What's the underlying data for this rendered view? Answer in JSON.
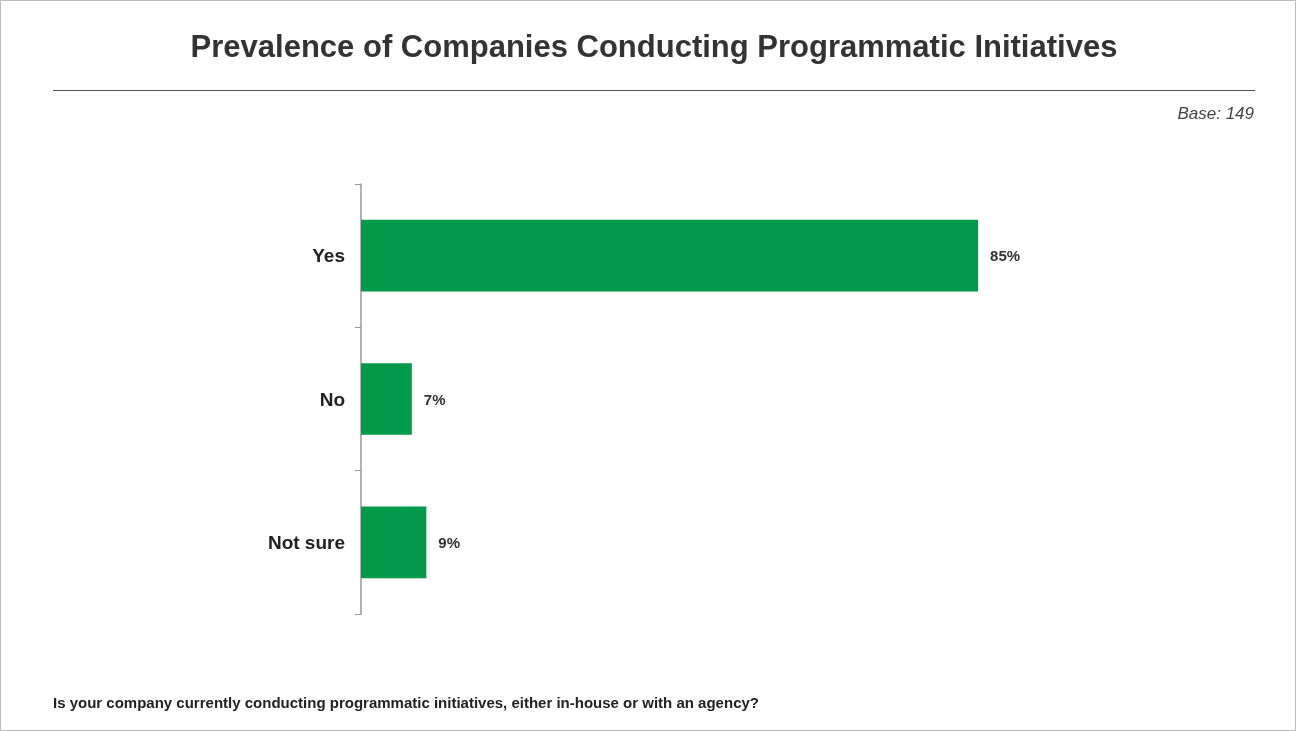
{
  "chart_data": {
    "type": "bar",
    "orientation": "horizontal",
    "title": "Prevalence of Companies Conducting Programmatic Initiatives",
    "subtitle": "Base: 149",
    "annotations": [
      "Is your company currently conducting programmatic initiatives, either in-house or with an agency?"
    ],
    "categories": [
      "Yes",
      "No",
      "Not sure"
    ],
    "values": [
      85,
      7,
      9
    ],
    "value_labels": [
      "85%",
      "7%",
      "9%"
    ],
    "color": "#009a4a"
  }
}
